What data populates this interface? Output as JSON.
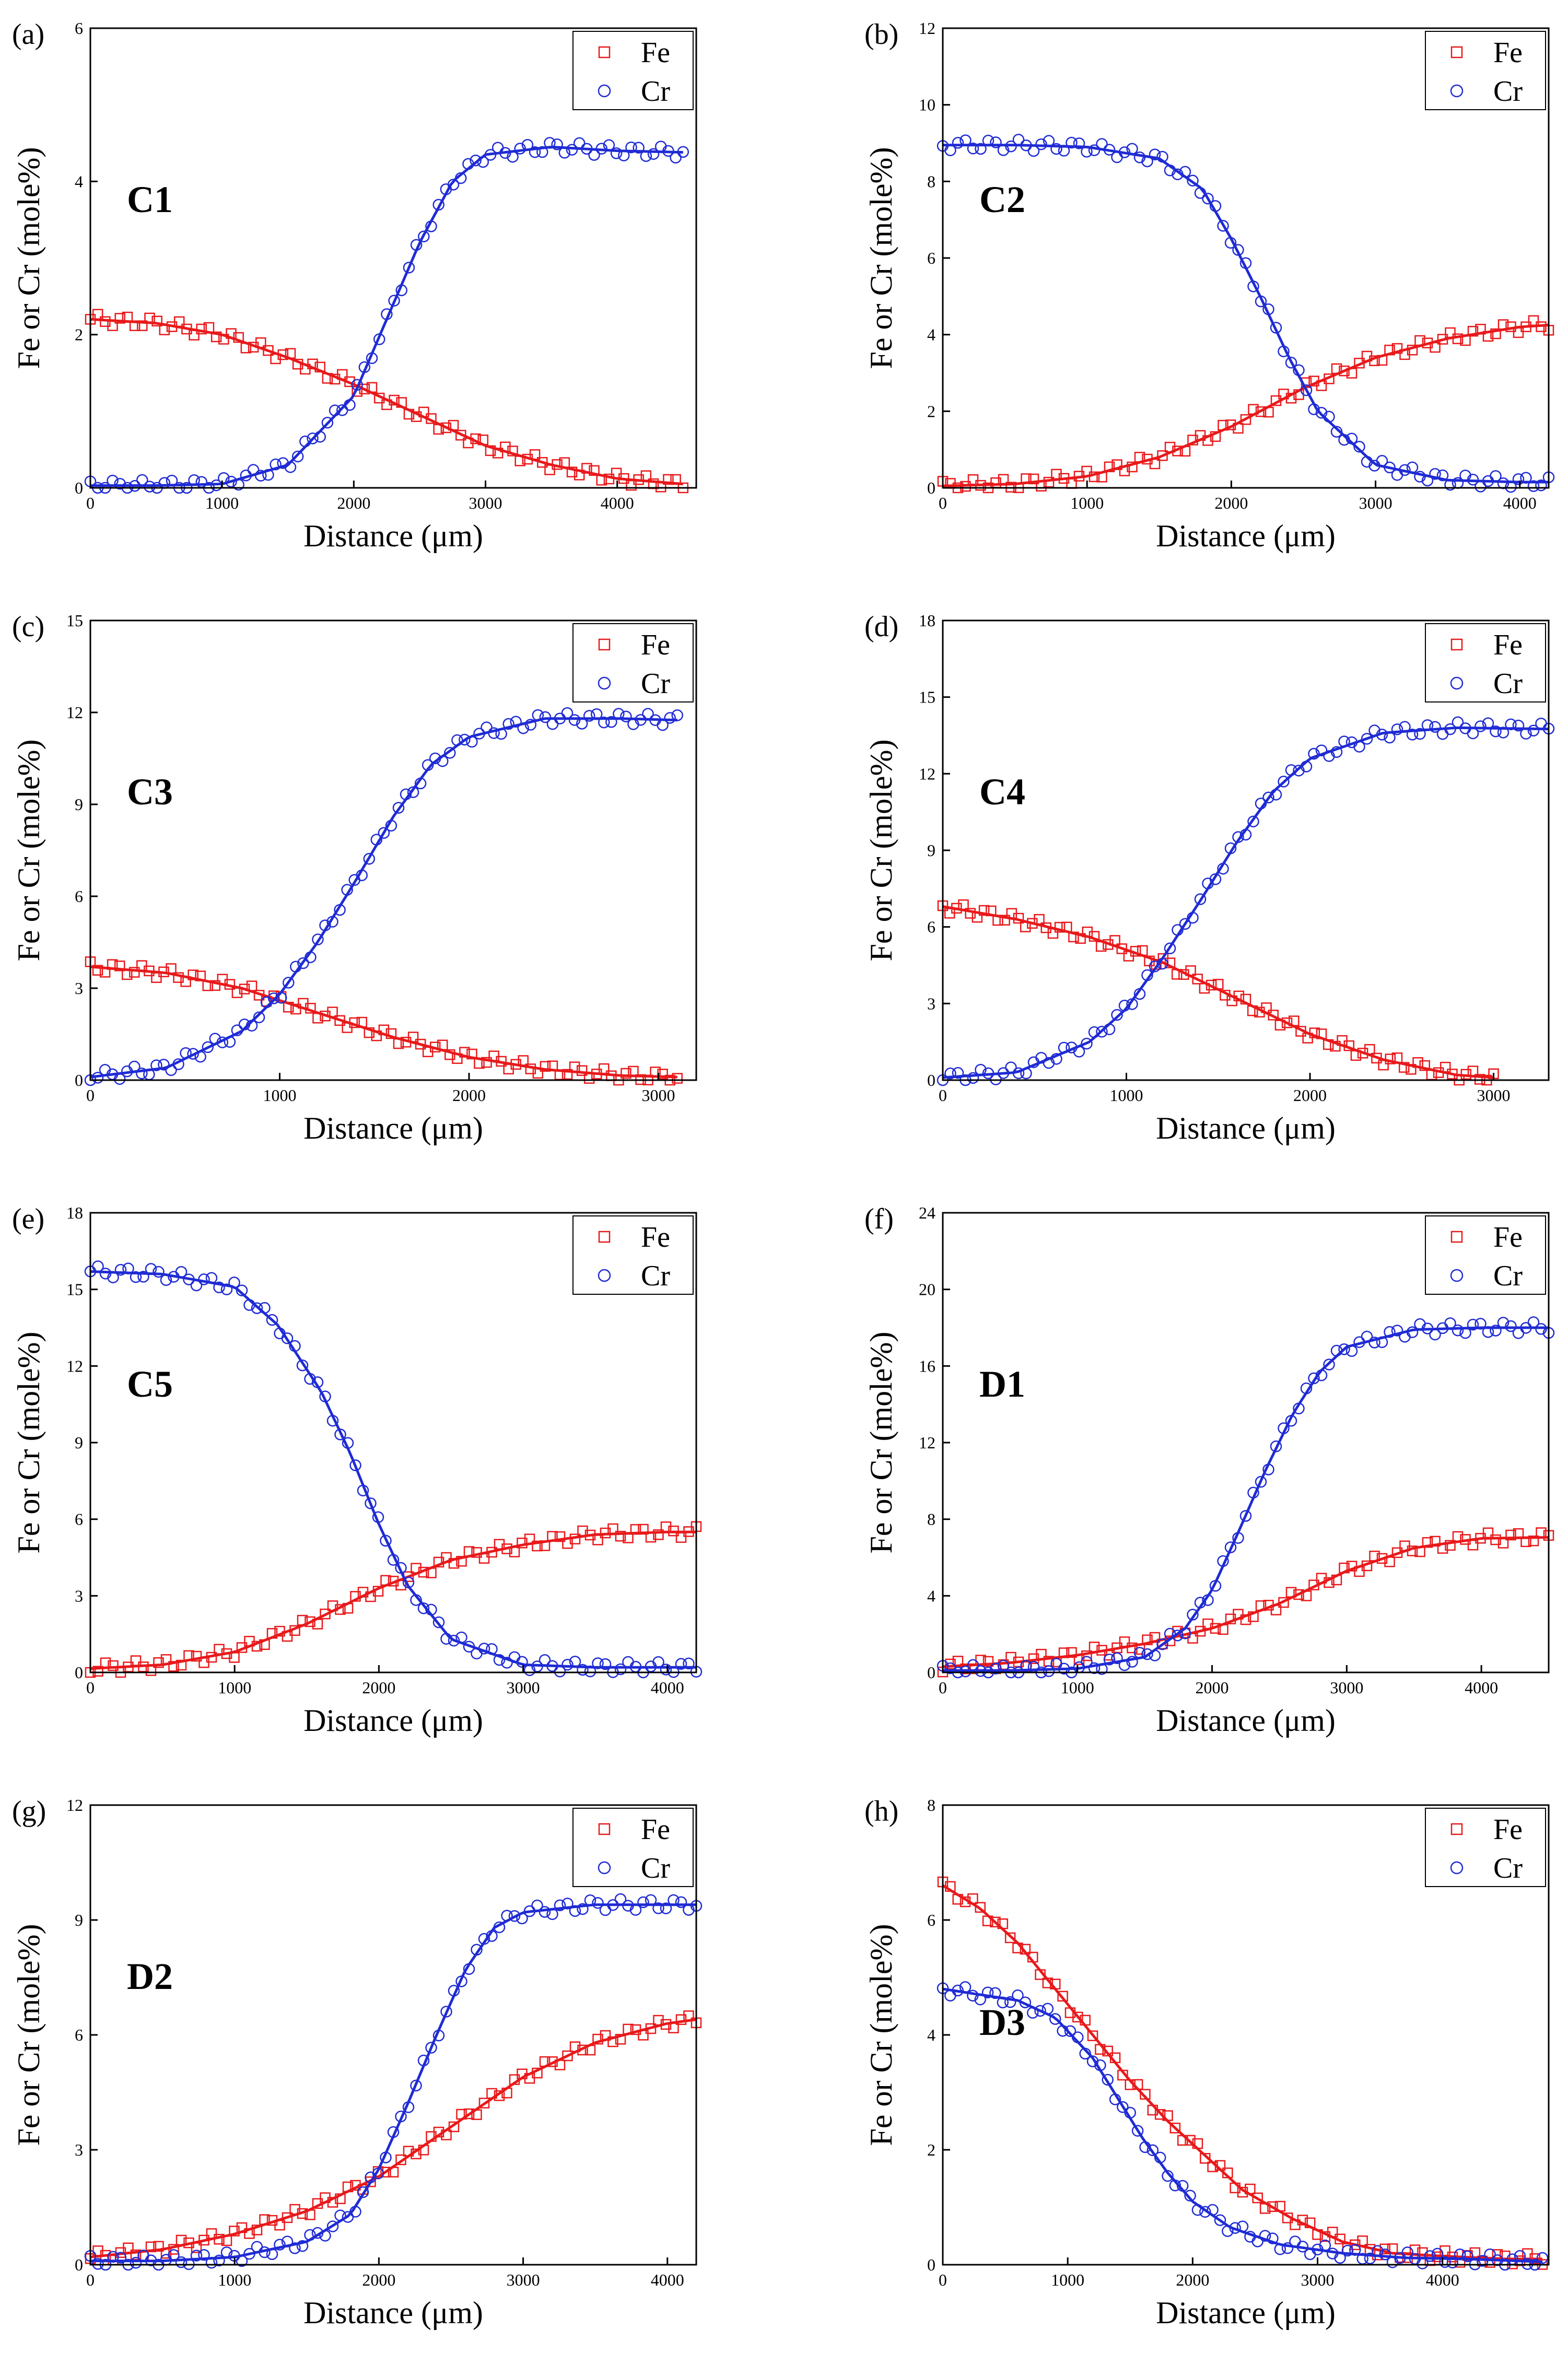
{
  "chart_data": [
    {
      "type": "scatter",
      "panel_letter": "(a)",
      "sample_label": "C1",
      "xlabel": "Distance (μm)",
      "ylabel": "Fe or Cr (mole%)",
      "xlim": [
        0,
        4600
      ],
      "ylim": [
        0,
        6
      ],
      "x_ticks": [
        0,
        1000,
        2000,
        3000,
        4000
      ],
      "y_ticks": [
        0,
        2,
        4,
        6
      ],
      "legend": {
        "position": "top-right",
        "entries": [
          "Fe",
          "Cr"
        ]
      },
      "series": [
        {
          "name": "Fe",
          "color": "#e8191b",
          "marker": "square",
          "x": [
            0,
            500,
            1000,
            1500,
            2000,
            2500,
            3000,
            3500,
            4000,
            4500
          ],
          "y": [
            2.2,
            2.15,
            2.0,
            1.7,
            1.35,
            0.95,
            0.55,
            0.3,
            0.12,
            0.05
          ]
        },
        {
          "name": "Cr",
          "color": "#1f2bd4",
          "marker": "circle",
          "x": [
            0,
            500,
            1000,
            1500,
            2000,
            2250,
            2500,
            2750,
            3000,
            3500,
            4000,
            4500
          ],
          "y": [
            0.03,
            0.03,
            0.05,
            0.3,
            1.2,
            2.2,
            3.2,
            4.0,
            4.35,
            4.45,
            4.4,
            4.38
          ]
        }
      ]
    },
    {
      "type": "scatter",
      "panel_letter": "(b)",
      "sample_label": "C2",
      "xlabel": "Distance (μm)",
      "ylabel": "Fe or Cr (mole%)",
      "xlim": [
        0,
        4200
      ],
      "ylim": [
        0,
        12
      ],
      "x_ticks": [
        0,
        1000,
        2000,
        3000,
        4000
      ],
      "y_ticks": [
        0,
        2,
        4,
        6,
        8,
        10,
        12
      ],
      "legend": {
        "position": "top-right",
        "entries": [
          "Fe",
          "Cr"
        ]
      },
      "series": [
        {
          "name": "Fe",
          "color": "#e8191b",
          "marker": "square",
          "x": [
            0,
            500,
            1000,
            1500,
            2000,
            2500,
            3000,
            3500,
            4000,
            4200
          ],
          "y": [
            0.05,
            0.1,
            0.3,
            0.8,
            1.6,
            2.6,
            3.4,
            3.9,
            4.2,
            4.25
          ]
        },
        {
          "name": "Cr",
          "color": "#1f2bd4",
          "marker": "circle",
          "x": [
            0,
            500,
            1000,
            1500,
            1800,
            2000,
            2200,
            2400,
            2600,
            3000,
            3500,
            4000,
            4200
          ],
          "y": [
            8.95,
            8.95,
            8.9,
            8.6,
            7.8,
            6.5,
            5.0,
            3.4,
            2.0,
            0.6,
            0.2,
            0.15,
            0.15
          ]
        }
      ]
    },
    {
      "type": "scatter",
      "panel_letter": "(c)",
      "sample_label": "C3",
      "xlabel": "Distance (μm)",
      "ylabel": "Fe or Cr (mole%)",
      "xlim": [
        0,
        3200
      ],
      "ylim": [
        0,
        15
      ],
      "x_ticks": [
        0,
        1000,
        2000,
        3000
      ],
      "y_ticks": [
        0,
        3,
        6,
        9,
        12,
        15
      ],
      "legend": {
        "position": "top-right",
        "entries": [
          "Fe",
          "Cr"
        ]
      },
      "series": [
        {
          "name": "Fe",
          "color": "#e8191b",
          "marker": "square",
          "x": [
            0,
            400,
            800,
            1200,
            1600,
            2000,
            2400,
            2800,
            3100
          ],
          "y": [
            3.7,
            3.5,
            3.0,
            2.2,
            1.4,
            0.75,
            0.35,
            0.15,
            0.1
          ]
        },
        {
          "name": "Cr",
          "color": "#1f2bd4",
          "marker": "circle",
          "x": [
            0,
            400,
            800,
            1000,
            1200,
            1400,
            1600,
            1800,
            2000,
            2400,
            2800,
            3100
          ],
          "y": [
            0.1,
            0.4,
            1.6,
            2.8,
            4.5,
            6.5,
            8.6,
            10.3,
            11.2,
            11.8,
            11.8,
            11.75
          ]
        }
      ]
    },
    {
      "type": "scatter",
      "panel_letter": "(d)",
      "sample_label": "C4",
      "xlabel": "Distance (μm)",
      "ylabel": "Fe or Cr (mole%)",
      "xlim": [
        0,
        3300
      ],
      "ylim": [
        0,
        18
      ],
      "x_ticks": [
        0,
        1000,
        2000,
        3000
      ],
      "y_ticks": [
        0,
        3,
        6,
        9,
        12,
        15,
        18
      ],
      "legend": {
        "position": "top-right",
        "entries": [
          "Fe",
          "Cr"
        ]
      },
      "series": [
        {
          "name": "Fe",
          "color": "#e8191b",
          "marker": "square",
          "x": [
            0,
            400,
            800,
            1200,
            1600,
            2000,
            2400,
            2800,
            3000
          ],
          "y": [
            6.8,
            6.3,
            5.6,
            4.6,
            3.2,
            1.8,
            0.8,
            0.2,
            0.1
          ]
        },
        {
          "name": "Cr",
          "color": "#1f2bd4",
          "marker": "circle",
          "x": [
            0,
            400,
            800,
            1000,
            1200,
            1400,
            1600,
            1800,
            2000,
            2400,
            2800,
            3300
          ],
          "y": [
            0.1,
            0.3,
            1.5,
            2.8,
            4.8,
            7.0,
            9.3,
            11.3,
            12.6,
            13.6,
            13.8,
            13.75
          ]
        }
      ]
    },
    {
      "type": "scatter",
      "panel_letter": "(e)",
      "sample_label": "C5",
      "xlabel": "Distance (μm)",
      "ylabel": "Fe or Cr (mole%)",
      "xlim": [
        0,
        4200
      ],
      "ylim": [
        0,
        18
      ],
      "x_ticks": [
        0,
        1000,
        2000,
        3000,
        4000
      ],
      "y_ticks": [
        0,
        3,
        6,
        9,
        12,
        15,
        18
      ],
      "legend": {
        "position": "top-right",
        "entries": [
          "Fe",
          "Cr"
        ]
      },
      "series": [
        {
          "name": "Fe",
          "color": "#e8191b",
          "marker": "square",
          "x": [
            0,
            500,
            1000,
            1500,
            2000,
            2500,
            3000,
            3500,
            4000,
            4200
          ],
          "y": [
            0.15,
            0.3,
            0.8,
            1.9,
            3.3,
            4.4,
            5.0,
            5.4,
            5.5,
            5.5
          ]
        },
        {
          "name": "Cr",
          "color": "#1f2bd4",
          "marker": "circle",
          "x": [
            0,
            500,
            1000,
            1300,
            1600,
            1800,
            2000,
            2200,
            2500,
            3000,
            3500,
            4200
          ],
          "y": [
            15.7,
            15.6,
            15.1,
            13.6,
            11.0,
            8.6,
            5.8,
            3.4,
            1.3,
            0.3,
            0.2,
            0.2
          ]
        }
      ]
    },
    {
      "type": "scatter",
      "panel_letter": "(f)",
      "sample_label": "D1",
      "xlabel": "Distance (μm)",
      "ylabel": "Fe or Cr (mole%)",
      "xlim": [
        0,
        4500
      ],
      "ylim": [
        0,
        24
      ],
      "x_ticks": [
        0,
        1000,
        2000,
        3000,
        4000
      ],
      "y_ticks": [
        0,
        4,
        8,
        12,
        16,
        20,
        24
      ],
      "legend": {
        "position": "top-right",
        "entries": [
          "Fe",
          "Cr"
        ]
      },
      "series": [
        {
          "name": "Fe",
          "color": "#e8191b",
          "marker": "square",
          "x": [
            0,
            500,
            1000,
            1500,
            2000,
            2500,
            3000,
            3500,
            4000,
            4500
          ],
          "y": [
            0.3,
            0.5,
            0.9,
            1.5,
            2.3,
            3.6,
            5.3,
            6.5,
            7.0,
            7.05
          ]
        },
        {
          "name": "Cr",
          "color": "#1f2bd4",
          "marker": "circle",
          "x": [
            0,
            500,
            1000,
            1500,
            1800,
            2000,
            2200,
            2400,
            2600,
            2800,
            3000,
            3500,
            4000,
            4500
          ],
          "y": [
            0.1,
            0.1,
            0.2,
            0.8,
            2.3,
            4.3,
            7.4,
            10.6,
            13.5,
            15.7,
            17.0,
            17.9,
            18.0,
            18.0
          ]
        }
      ]
    },
    {
      "type": "scatter",
      "panel_letter": "(g)",
      "sample_label": "D2",
      "xlabel": "Distance (μm)",
      "ylabel": "Fe or Cr (mole%)",
      "xlim": [
        0,
        4200
      ],
      "ylim": [
        0,
        12
      ],
      "x_ticks": [
        0,
        1000,
        2000,
        3000,
        4000
      ],
      "y_ticks": [
        0,
        3,
        6,
        9,
        12
      ],
      "legend": {
        "position": "top-right",
        "entries": [
          "Fe",
          "Cr"
        ]
      },
      "series": [
        {
          "name": "Fe",
          "color": "#e8191b",
          "marker": "square",
          "x": [
            0,
            500,
            1000,
            1500,
            2000,
            2500,
            3000,
            3500,
            4000,
            4200
          ],
          "y": [
            0.2,
            0.4,
            0.8,
            1.4,
            2.3,
            3.6,
            4.9,
            5.8,
            6.3,
            6.4
          ]
        },
        {
          "name": "Cr",
          "color": "#1f2bd4",
          "marker": "circle",
          "x": [
            0,
            500,
            1000,
            1500,
            1800,
            2000,
            2200,
            2400,
            2600,
            2800,
            3000,
            3500,
            4000,
            4200
          ],
          "y": [
            0.1,
            0.1,
            0.2,
            0.6,
            1.3,
            2.5,
            4.2,
            6.0,
            7.7,
            8.8,
            9.2,
            9.4,
            9.4,
            9.4
          ]
        }
      ]
    },
    {
      "type": "scatter",
      "panel_letter": "(h)",
      "sample_label": "D3",
      "xlabel": "Distance (μm)",
      "ylabel": "Fe or Cr (mole%)",
      "xlim": [
        0,
        4850
      ],
      "ylim": [
        0,
        8
      ],
      "x_ticks": [
        0,
        1000,
        2000,
        3000,
        4000
      ],
      "y_ticks": [
        0,
        2,
        4,
        6,
        8
      ],
      "legend": {
        "position": "top-right",
        "entries": [
          "Fe",
          "Cr"
        ]
      },
      "series": [
        {
          "name": "Fe",
          "color": "#e8191b",
          "marker": "square",
          "x": [
            0,
            300,
            600,
            900,
            1200,
            1500,
            1800,
            2100,
            2400,
            2800,
            3200,
            3600,
            4000,
            4500,
            4800
          ],
          "y": [
            6.6,
            6.2,
            5.6,
            4.8,
            4.0,
            3.2,
            2.5,
            1.9,
            1.3,
            0.8,
            0.4,
            0.2,
            0.15,
            0.1,
            0.1
          ]
        },
        {
          "name": "Cr",
          "color": "#1f2bd4",
          "marker": "circle",
          "x": [
            0,
            300,
            600,
            900,
            1200,
            1400,
            1600,
            1800,
            2000,
            2300,
            2700,
            3200,
            3700,
            4200,
            4800
          ],
          "y": [
            4.8,
            4.7,
            4.6,
            4.3,
            3.6,
            2.9,
            2.2,
            1.6,
            1.1,
            0.65,
            0.35,
            0.2,
            0.12,
            0.1,
            0.05
          ]
        }
      ]
    }
  ]
}
